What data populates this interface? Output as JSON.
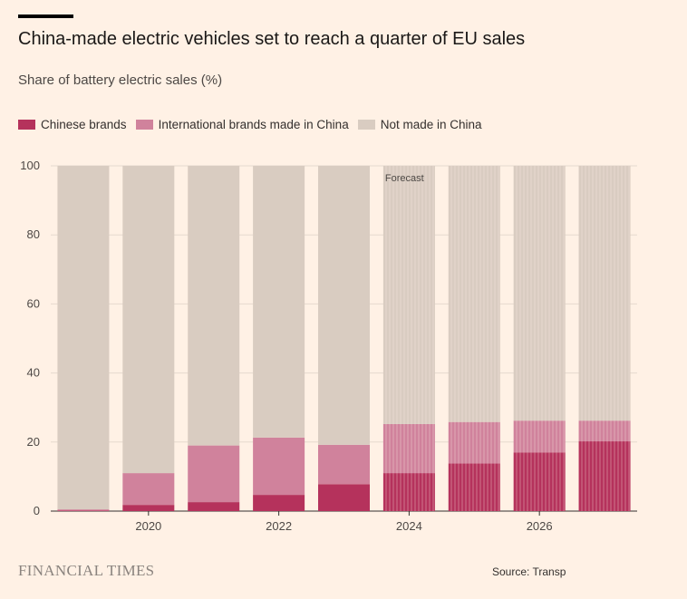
{
  "header": {
    "title": "China-made electric vehicles set to reach a quarter of EU sales",
    "subtitle": "Share of battery electric sales (%)"
  },
  "footer": {
    "brand": "FINANCIAL TIMES",
    "source": "Source: Transp"
  },
  "colors": {
    "background": "#FFF1E5",
    "chinese_brands": "#B5325C",
    "international_brands": "#D0829C",
    "not_made_in_china": "#D9CCC1",
    "gridline": "#E6D9CE"
  },
  "chart_data": {
    "type": "bar",
    "stacked": true,
    "categories": [
      "2019",
      "2020",
      "2021",
      "2022",
      "2023",
      "2024",
      "2025",
      "2026",
      "2027"
    ],
    "x_tick_labels": [
      "2020",
      "2022",
      "2024",
      "2026"
    ],
    "series": [
      {
        "name": "Chinese brands",
        "color": "#B5325C",
        "values": [
          0.2,
          1.8,
          2.6,
          4.7,
          7.8,
          11,
          13.8,
          17,
          20.2
        ]
      },
      {
        "name": "International brands made in China",
        "color": "#D0829C",
        "values": [
          0.3,
          9.2,
          16.4,
          16.6,
          11.4,
          14.2,
          12.0,
          9.2,
          6.0
        ]
      },
      {
        "name": "Not made in China",
        "color": "#D9CCC1",
        "values": [
          99.5,
          89.0,
          81.0,
          78.7,
          80.8,
          74.8,
          74.2,
          73.8,
          73.8
        ]
      }
    ],
    "forecast_label": "Forecast",
    "forecast_from": "2024",
    "ylim": [
      0,
      100
    ],
    "yticks": [
      0,
      20,
      40,
      60,
      80,
      100
    ],
    "grid": true,
    "legend_position": "top-left",
    "xlabel": "",
    "ylabel": ""
  }
}
